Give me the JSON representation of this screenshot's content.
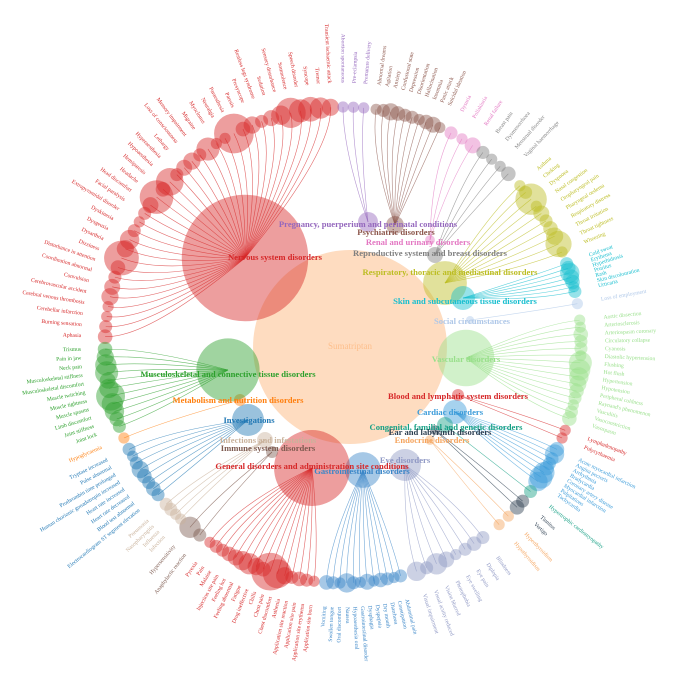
{
  "center": {
    "label": "Sumatriptan",
    "color": "#fdbf8c",
    "size": 2350
  },
  "groups": [
    {
      "label": "Nervous system disorders",
      "color": "#d62728",
      "size": 1000,
      "leaves": [
        {
          "label": "Aphasia",
          "size": 4
        },
        {
          "label": "Burning sensation",
          "size": 3
        },
        {
          "label": "Cerebellar infarction",
          "size": 2
        },
        {
          "label": "Cerebral venous thrombosis",
          "size": 2
        },
        {
          "label": "Cerebrovascular accident",
          "size": 6
        },
        {
          "label": "Convulsion",
          "size": 5
        },
        {
          "label": "Coordination abnormal",
          "size": 3
        },
        {
          "label": "Disturbance in attention",
          "size": 4
        },
        {
          "label": "Dizziness",
          "size": 30
        },
        {
          "label": "Dysarthria",
          "size": 6
        },
        {
          "label": "Dysgeusia",
          "size": 8
        },
        {
          "label": "Dyskinesia",
          "size": 3
        },
        {
          "label": "Extrapyramidal disorder",
          "size": 2
        },
        {
          "label": "Facial paralysis",
          "size": 3
        },
        {
          "label": "Head discomfort",
          "size": 5
        },
        {
          "label": "Headache",
          "size": 28
        },
        {
          "label": "Hemiparesis",
          "size": 4
        },
        {
          "label": "Hypoaesthesia",
          "size": 18
        },
        {
          "label": "Hyperaesthesia",
          "size": 3
        },
        {
          "label": "Lethargy",
          "size": 5
        },
        {
          "label": "Loss of consciousness",
          "size": 6
        },
        {
          "label": "Memory impairment",
          "size": 3
        },
        {
          "label": "Migraine",
          "size": 12
        },
        {
          "label": "Myoclonus",
          "size": 2
        },
        {
          "label": "Neuralgia",
          "size": 2
        },
        {
          "label": "Paraesthesia",
          "size": 40
        },
        {
          "label": "Paresis",
          "size": 4
        },
        {
          "label": "Presyncope",
          "size": 6
        },
        {
          "label": "Restless legs syndrome",
          "size": 3
        },
        {
          "label": "Sedation",
          "size": 5
        },
        {
          "label": "Sensory disturbance",
          "size": 8
        },
        {
          "label": "Somnolence",
          "size": 22
        },
        {
          "label": "Speech disorder",
          "size": 12
        },
        {
          "label": "Syncope",
          "size": 14
        },
        {
          "label": "Tremor",
          "size": 10
        },
        {
          "label": "Transient ischaemic attack",
          "size": 6
        }
      ]
    },
    {
      "label": "Pregnancy, puerperium and perinatal conditions",
      "color": "#9467bd",
      "size": 25,
      "leaves": [
        {
          "label": "Abortion spontaneous",
          "size": 2
        },
        {
          "label": "Pre-eclampsia",
          "size": 2
        },
        {
          "label": "Premature delivery",
          "size": 2
        }
      ]
    },
    {
      "label": "Psychiatric disorders",
      "color": "#8c564b",
      "size": 20,
      "leaves": [
        {
          "label": "Abnormal dreams",
          "size": 2
        },
        {
          "label": "Agitation",
          "size": 3
        },
        {
          "label": "Anxiety",
          "size": 6
        },
        {
          "label": "Confusional state",
          "size": 4
        },
        {
          "label": "Depression",
          "size": 3
        },
        {
          "label": "Disorientation",
          "size": 3
        },
        {
          "label": "Hallucination",
          "size": 2
        },
        {
          "label": "Insomnia",
          "size": 4
        },
        {
          "label": "Panic attack",
          "size": 5
        },
        {
          "label": "Suicidal ideation",
          "size": 2
        }
      ]
    },
    {
      "label": "Renal and urinary disorders",
      "color": "#e377c2",
      "size": 6,
      "leaves": [
        {
          "label": "Dysuria",
          "size": 3
        },
        {
          "label": "Pollakiuria",
          "size": 2
        },
        {
          "label": "Renal failure",
          "size": 5
        }
      ]
    },
    {
      "label": "Reproductive system and breast disorders",
      "color": "#7f7f7f",
      "size": 16,
      "leaves": [
        {
          "label": "Breast pain",
          "size": 3
        },
        {
          "label": "Dysmenorrhoea",
          "size": 2
        },
        {
          "label": "Menstrual disorder",
          "size": 2
        },
        {
          "label": "Vaginal haemorrhage",
          "size": 4
        }
      ]
    },
    {
      "label": "Respiratory, thoracic and mediastinal disorders",
      "color": "#bcbd22",
      "size": 120,
      "leaves": [
        {
          "label": "Asthma",
          "size": 2
        },
        {
          "label": "Choking",
          "size": 3
        },
        {
          "label": "Dyspnoea",
          "size": 24
        },
        {
          "label": "Nasal congestion",
          "size": 2
        },
        {
          "label": "Oropharyngeal pain",
          "size": 5
        },
        {
          "label": "Pharyngeal oedema",
          "size": 3
        },
        {
          "label": "Respiratory distress",
          "size": 4
        },
        {
          "label": "Throat irritation",
          "size": 6
        },
        {
          "label": "Throat tightness",
          "size": 16
        },
        {
          "label": "Wheezing",
          "size": 2
        }
      ]
    },
    {
      "label": "Skin and subcutaneous tissue disorders",
      "color": "#17becf",
      "size": 36,
      "leaves": [
        {
          "label": "Cold sweat",
          "size": 3
        },
        {
          "label": "Erythema",
          "size": 4
        },
        {
          "label": "Hyperhidrosis",
          "size": 8
        },
        {
          "label": "Pruritus",
          "size": 5
        },
        {
          "label": "Rash",
          "size": 4
        },
        {
          "label": "Skin discolouration",
          "size": 2
        },
        {
          "label": "Urticaria",
          "size": 3
        }
      ]
    },
    {
      "label": "Social circumstances",
      "color": "#aec7e8",
      "size": 4,
      "leaves": [
        {
          "label": "Loss of employment",
          "size": 2
        }
      ]
    },
    {
      "label": "Vascular disorders",
      "color": "#98df8a",
      "size": 200,
      "leaves": [
        {
          "label": "Aortic dissection",
          "size": 2
        },
        {
          "label": "Arteriosclerosis",
          "size": 2
        },
        {
          "label": "Arteriospasm coronary",
          "size": 4
        },
        {
          "label": "Circulatory collapse",
          "size": 3
        },
        {
          "label": "Cyanosis",
          "size": 3
        },
        {
          "label": "Diastolic hypertension",
          "size": 2
        },
        {
          "label": "Flushing",
          "size": 12
        },
        {
          "label": "Hot flush",
          "size": 10
        },
        {
          "label": "Hypertension",
          "size": 8
        },
        {
          "label": "Hypotension",
          "size": 6
        },
        {
          "label": "Peripheral coldness",
          "size": 4
        },
        {
          "label": "Raynaud's phenomenon",
          "size": 3
        },
        {
          "label": "Vasculitis",
          "size": 2
        },
        {
          "label": "Vasoconstriction",
          "size": 3
        },
        {
          "label": "Vasospasm",
          "size": 4
        }
      ]
    },
    {
      "label": "Blood and lymphatic system disorders",
      "color": "#d62728",
      "size": 9,
      "leaves": [
        {
          "label": "Lymphadenopathy",
          "size": 2
        },
        {
          "label": "Polycythaemia",
          "size": 2
        }
      ]
    },
    {
      "label": "Cardiac disorders",
      "color": "#3a9bd9",
      "size": 36,
      "leaves": [
        {
          "label": "Acute myocardial infarction",
          "size": 4
        },
        {
          "label": "Angina pectoris",
          "size": 8
        },
        {
          "label": "Arrhythmia",
          "size": 3
        },
        {
          "label": "Bradycardia",
          "size": 3
        },
        {
          "label": "Coronary artery disease",
          "size": 4
        },
        {
          "label": "Myocardial infarction",
          "size": 10
        },
        {
          "label": "Palpitations",
          "size": 12
        },
        {
          "label": "Tachycardia",
          "size": 8
        }
      ]
    },
    {
      "label": "Congenital, familial and genetic disorders",
      "color": "#16a085",
      "size": 16,
      "leaves": [
        {
          "label": "Hypertrophic cardiomyopathy",
          "size": 3
        }
      ]
    },
    {
      "label": "Ear and labyrinth disorders",
      "color": "#2c3e50",
      "size": 6,
      "leaves": [
        {
          "label": "Tinnitus",
          "size": 3
        },
        {
          "label": "Vertigo",
          "size": 4
        }
      ]
    },
    {
      "label": "Endocrine disorders",
      "color": "#f5a45d",
      "size": 6,
      "leaves": [
        {
          "label": "Hyperthyroidism",
          "size": 2
        },
        {
          "label": "Hypothyroidism",
          "size": 2
        }
      ]
    },
    {
      "label": "Eye disorders",
      "color": "#8f98c4",
      "size": 64,
      "leaves": [
        {
          "label": "Blindness",
          "size": 3
        },
        {
          "label": "Diplopia",
          "size": 4
        },
        {
          "label": "Eye pain",
          "size": 3
        },
        {
          "label": "Eye swelling",
          "size": 2
        },
        {
          "label": "Photophobia",
          "size": 5
        },
        {
          "label": "Vision blurred",
          "size": 10
        },
        {
          "label": "Visual acuity reduced",
          "size": 3
        },
        {
          "label": "Visual impairment",
          "size": 8
        }
      ]
    },
    {
      "label": "Gastrointestinal disorders",
      "color": "#3a86c8",
      "size": 80,
      "leaves": [
        {
          "label": "Abdominal pain",
          "size": 3
        },
        {
          "label": "Constipation",
          "size": 2
        },
        {
          "label": "Diarrhoea",
          "size": 3
        },
        {
          "label": "Dry mouth",
          "size": 4
        },
        {
          "label": "Dyspepsia",
          "size": 2
        },
        {
          "label": "Dysphagia",
          "size": 5
        },
        {
          "label": "Gastrointestinal disorder",
          "size": 2
        },
        {
          "label": "Hypoaesthesia oral",
          "size": 3
        },
        {
          "label": "Nausea",
          "size": 8
        },
        {
          "label": "Oral discomfort",
          "size": 2
        },
        {
          "label": "Swollen tongue",
          "size": 3
        },
        {
          "label": "Vomiting",
          "size": 4
        }
      ]
    },
    {
      "label": "General disorders and administration site conditions",
      "color": "#d62728",
      "size": 360,
      "leaves": [
        {
          "label": "Application site burn",
          "size": 2
        },
        {
          "label": "Application site erythema",
          "size": 3
        },
        {
          "label": "Application site pain",
          "size": 4
        },
        {
          "label": "Application site reaction",
          "size": 3
        },
        {
          "label": "Asthenia",
          "size": 6
        },
        {
          "label": "Chest discomfort",
          "size": 20
        },
        {
          "label": "Chest pain",
          "size": 36
        },
        {
          "label": "Chills",
          "size": 4
        },
        {
          "label": "Drug ineffective",
          "size": 6
        },
        {
          "label": "Fatigue",
          "size": 10
        },
        {
          "label": "Feeling abnormal",
          "size": 8
        },
        {
          "label": "Feeling hot",
          "size": 5
        },
        {
          "label": "Injection site pain",
          "size": 4
        },
        {
          "label": "Malaise",
          "size": 3
        },
        {
          "label": "Pain",
          "size": 3
        },
        {
          "label": "Pyrexia",
          "size": 2
        }
      ]
    },
    {
      "label": "Immune system disorders",
      "color": "#7d5a4f",
      "size": 9,
      "leaves": [
        {
          "label": "Anaphylactic reaction",
          "size": 3
        },
        {
          "label": "Hypersensitivity",
          "size": 10
        }
      ]
    },
    {
      "label": "Infections and infestations",
      "color": "#c9b29b",
      "size": 16,
      "leaves": [
        {
          "label": "Infection",
          "size": 2
        },
        {
          "label": "Influenza",
          "size": 2
        },
        {
          "label": "Nasopharyngitis",
          "size": 3
        },
        {
          "label": "Pneumonia",
          "size": 3
        }
      ]
    },
    {
      "label": "Investigations",
      "color": "#1f77b4",
      "size": 64,
      "leaves": [
        {
          "label": "Electrocardiogram ST segment elevation",
          "size": 3
        },
        {
          "label": "Blood test abnormal",
          "size": 4
        },
        {
          "label": "Heart rate decreased",
          "size": 3
        },
        {
          "label": "Heart rate increased",
          "size": 4
        },
        {
          "label": "Human chorionic gonadotropin increased",
          "size": 6
        },
        {
          "label": "Prothrombin time prolonged",
          "size": 3
        },
        {
          "label": "Pulse abnormal",
          "size": 2
        },
        {
          "label": "Tryptase increased",
          "size": 3
        }
      ]
    },
    {
      "label": "Metabolism and nutrition disorders",
      "color": "#ff7f0e",
      "size": 9,
      "leaves": [
        {
          "label": "Hypoglycaemia",
          "size": 2
        }
      ]
    },
    {
      "label": "Musculoskeletal and connective tissue disorders",
      "color": "#2ca02c",
      "size": 250,
      "leaves": [
        {
          "label": "Joint lock",
          "size": 3
        },
        {
          "label": "Joint stiffness",
          "size": 4
        },
        {
          "label": "Limb discomfort",
          "size": 8
        },
        {
          "label": "Muscle spasms",
          "size": 10
        },
        {
          "label": "Muscle tightness",
          "size": 20
        },
        {
          "label": "Muscle twitching",
          "size": 8
        },
        {
          "label": "Musculoskeletal discomfort",
          "size": 5
        },
        {
          "label": "Musculoskeletal stiffness",
          "size": 12
        },
        {
          "label": "Neck pain",
          "size": 10
        },
        {
          "label": "Pain in jaw",
          "size": 6
        },
        {
          "label": "Trismus",
          "size": 4
        }
      ]
    }
  ]
}
